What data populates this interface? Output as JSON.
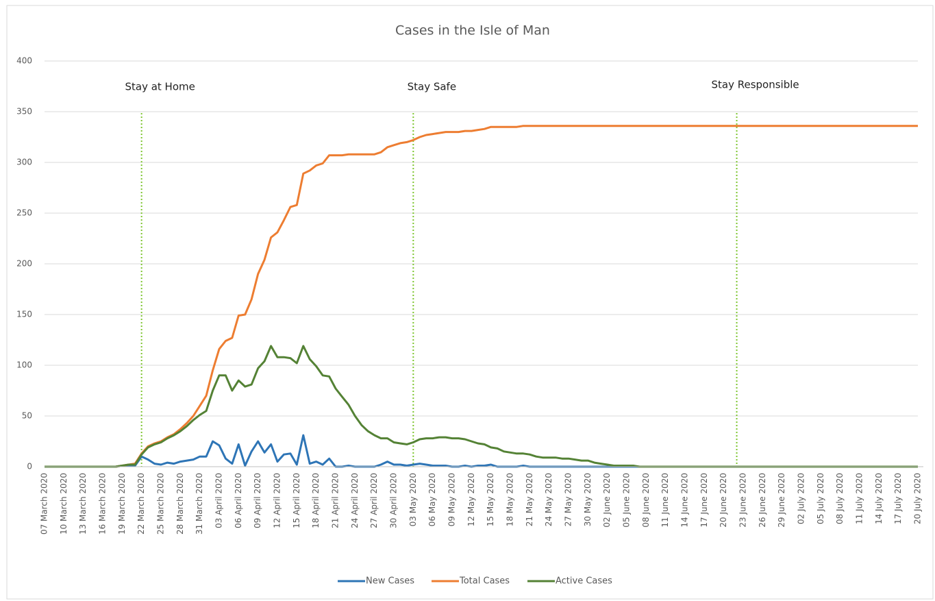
{
  "chart_data": {
    "type": "line",
    "title": "Cases in the Isle of Man",
    "categories": [
      "07 March 2020",
      null,
      null,
      "10 March 2020",
      null,
      null,
      "13 March 2020",
      null,
      null,
      "16 March 2020",
      null,
      null,
      "19 March 2020",
      null,
      null,
      "22 March 2020",
      null,
      null,
      "25 March 2020",
      null,
      null,
      "28 March 2020",
      null,
      null,
      "31 March 2020",
      null,
      null,
      "03 April 2020",
      null,
      null,
      "06 April 2020",
      null,
      null,
      "09 April 2020",
      null,
      null,
      "12 April 2020",
      null,
      null,
      "15 April 2020",
      null,
      null,
      "18 April 2020",
      null,
      null,
      "21 April 2020",
      null,
      null,
      "24 April 2020",
      null,
      null,
      "27 April 2020",
      null,
      null,
      "30 April 2020",
      null,
      null,
      "03 May 2020",
      null,
      null,
      "06 May 2020",
      null,
      null,
      "09 May 2020",
      null,
      null,
      "12 May 2020",
      null,
      null,
      "15 May 2020",
      null,
      null,
      "18 May 2020",
      null,
      null,
      "21 May 2020",
      null,
      null,
      "24 May 2020",
      null,
      null,
      "27 May 2020",
      null,
      null,
      "30 May 2020",
      null,
      null,
      "02 June 2020",
      null,
      null,
      "05 June 2020",
      null,
      null,
      "08 June 2020",
      null,
      null,
      "11 June 2020",
      null,
      null,
      "14 June 2020",
      null,
      null,
      "17 June 2020",
      null,
      null,
      "20 June 2020",
      null,
      null,
      "23 June 2020",
      null,
      null,
      "26 June 2020",
      null,
      null,
      "29 June 2020",
      null,
      null,
      "02 July 2020",
      null,
      null,
      "05 July 2020",
      null,
      null,
      "08 July 2020",
      null,
      null,
      "11 July 2020",
      null,
      null,
      "14 July 2020",
      null,
      null,
      "17 July 2020",
      null,
      null,
      "20 July 2020"
    ],
    "series": [
      {
        "name": "New Cases",
        "color": "#2e75b6",
        "values": [
          0,
          0,
          0,
          0,
          0,
          0,
          0,
          0,
          0,
          0,
          0,
          0,
          1,
          1,
          1,
          10,
          7,
          3,
          2,
          4,
          3,
          5,
          6,
          7,
          10,
          10,
          25,
          21,
          8,
          3,
          22,
          1,
          15,
          25,
          14,
          22,
          5,
          12,
          13,
          2,
          31,
          3,
          5,
          2,
          8,
          0,
          0,
          1,
          0,
          0,
          0,
          0,
          2,
          5,
          2,
          2,
          1,
          2,
          3,
          2,
          1,
          1,
          1,
          0,
          0,
          1,
          0,
          1,
          1,
          2,
          0,
          0,
          0,
          0,
          1,
          0,
          0,
          0,
          0,
          0,
          0,
          0,
          0,
          0,
          0,
          0,
          0,
          0,
          0,
          0,
          0,
          0,
          0,
          0,
          0,
          0,
          0,
          0,
          0,
          0,
          0,
          0,
          0,
          0,
          0,
          0,
          0,
          0,
          0,
          0,
          0,
          0,
          0,
          0,
          0,
          0,
          0,
          0,
          0,
          0,
          0,
          0,
          0,
          0,
          0,
          0,
          0,
          0,
          0,
          0,
          0,
          0,
          0,
          0,
          0,
          0
        ]
      },
      {
        "name": "Total Cases",
        "color": "#ed7d31",
        "values": [
          0,
          0,
          0,
          0,
          0,
          0,
          0,
          0,
          0,
          0,
          0,
          0,
          1,
          2,
          3,
          13,
          20,
          23,
          25,
          29,
          32,
          37,
          43,
          50,
          60,
          70,
          95,
          116,
          124,
          127,
          149,
          150,
          165,
          190,
          204,
          226,
          231,
          243,
          256,
          258,
          289,
          292,
          297,
          299,
          307,
          307,
          307,
          308,
          308,
          308,
          308,
          308,
          310,
          315,
          317,
          319,
          320,
          322,
          325,
          327,
          328,
          329,
          330,
          330,
          330,
          331,
          331,
          332,
          333,
          335,
          335,
          335,
          335,
          335,
          336,
          336,
          336,
          336,
          336,
          336,
          336,
          336,
          336,
          336,
          336,
          336,
          336,
          336,
          336,
          336,
          336,
          336,
          336,
          336,
          336,
          336,
          336,
          336,
          336,
          336,
          336,
          336,
          336,
          336,
          336,
          336,
          336,
          336,
          336,
          336,
          336,
          336,
          336,
          336,
          336,
          336,
          336,
          336,
          336,
          336,
          336,
          336,
          336,
          336,
          336,
          336,
          336,
          336,
          336,
          336,
          336,
          336,
          336,
          336,
          336,
          336
        ]
      },
      {
        "name": "Active Cases",
        "color": "#548235",
        "values": [
          0,
          0,
          0,
          0,
          0,
          0,
          0,
          0,
          0,
          0,
          0,
          0,
          1,
          2,
          2,
          12,
          19,
          22,
          24,
          28,
          31,
          35,
          40,
          46,
          51,
          55,
          75,
          90,
          90,
          75,
          85,
          79,
          81,
          97,
          104,
          119,
          108,
          108,
          107,
          102,
          119,
          106,
          99,
          90,
          89,
          77,
          69,
          61,
          50,
          41,
          35,
          31,
          28,
          28,
          24,
          23,
          22,
          24,
          27,
          28,
          28,
          29,
          29,
          28,
          28,
          27,
          25,
          23,
          22,
          19,
          18,
          15,
          14,
          13,
          13,
          12,
          10,
          9,
          9,
          9,
          8,
          8,
          7,
          6,
          6,
          4,
          3,
          2,
          1,
          1,
          1,
          1,
          0,
          0,
          0,
          0,
          0,
          0,
          0,
          0,
          0,
          0,
          0,
          0,
          0,
          0,
          0,
          0,
          0,
          0,
          0,
          0,
          0,
          0,
          0,
          0,
          0,
          0,
          0,
          0,
          0,
          0,
          0,
          0,
          0,
          0,
          0,
          0,
          0,
          0,
          0,
          0,
          0,
          0,
          0,
          0
        ]
      }
    ],
    "annotations": [
      {
        "text": "Stay at Home",
        "index": 15
      },
      {
        "text": "Stay Safe",
        "index": 57
      },
      {
        "text": "Stay Responsible",
        "index": 107
      }
    ],
    "ylim": [
      0,
      400
    ],
    "yticks": [
      0,
      50,
      100,
      150,
      200,
      250,
      300,
      350,
      400
    ],
    "grid": true,
    "legend": "bottom"
  }
}
